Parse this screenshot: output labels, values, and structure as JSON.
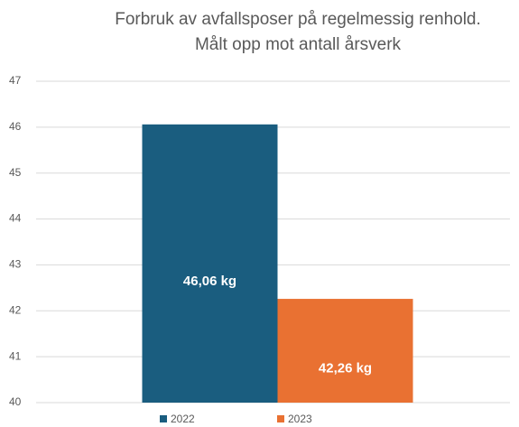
{
  "chart_data": {
    "type": "bar",
    "title": [
      "Forbruk av avfallsposer på regelmessig renhold.",
      "Målt opp mot antall årsverk"
    ],
    "categories": [
      null
    ],
    "series": [
      {
        "name": "2022",
        "color": "#1a5d7f",
        "values": [
          46.06
        ],
        "value_labels": [
          "46,06 kg"
        ]
      },
      {
        "name": "2023",
        "color": "#e97132",
        "values": [
          42.26
        ],
        "value_labels": [
          "42,26 kg"
        ]
      }
    ],
    "ylim": [
      40,
      47
    ],
    "yticks": [
      40,
      41,
      42,
      43,
      44,
      45,
      46,
      47
    ],
    "grid": true,
    "legend": "bottom"
  }
}
